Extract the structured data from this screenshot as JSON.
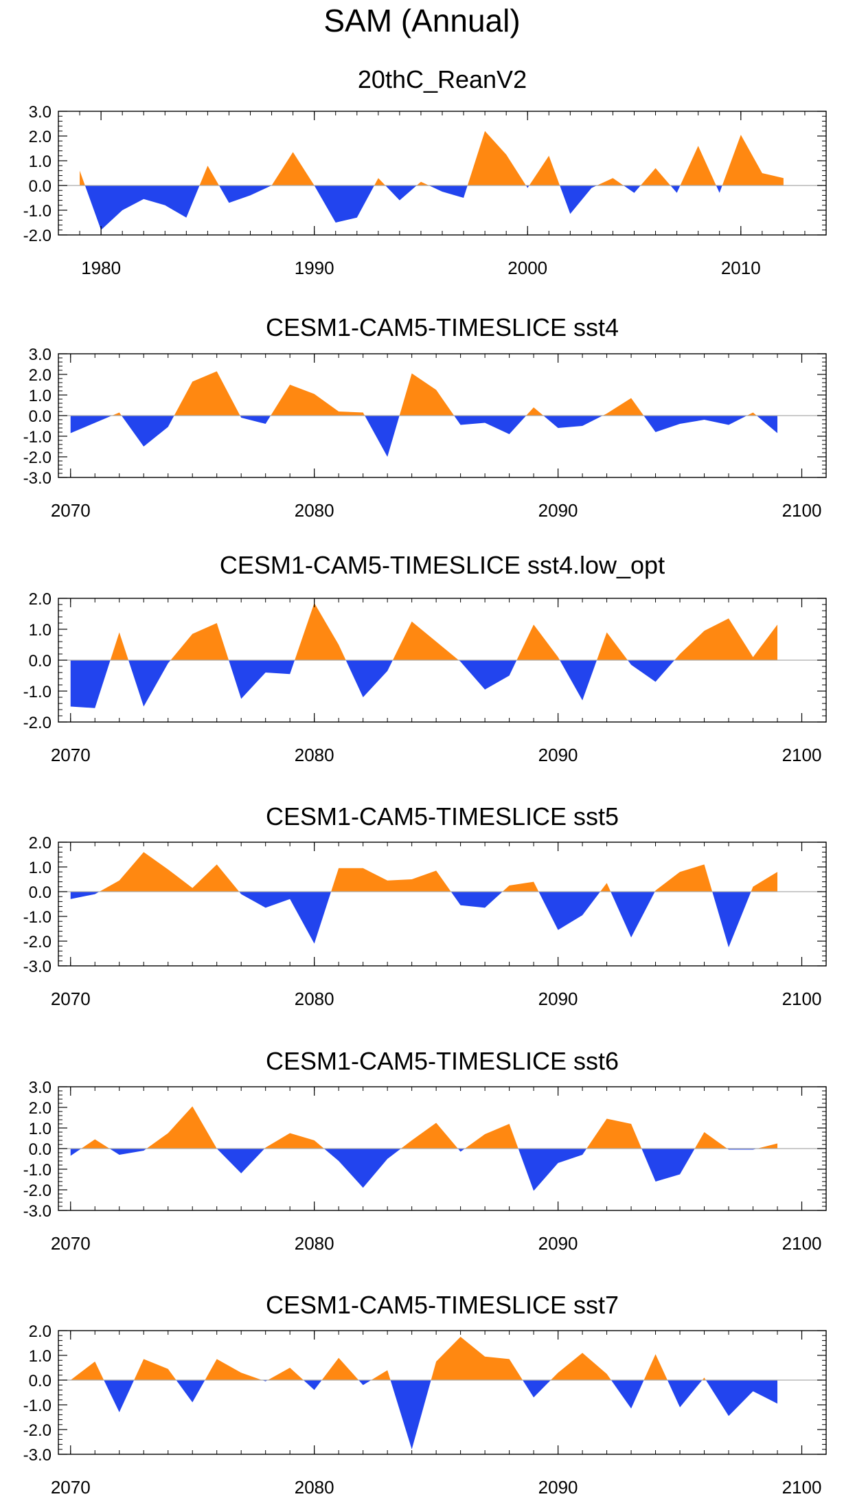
{
  "title": "SAM (Annual)",
  "colors": {
    "positive": "#ff8811",
    "negative": "#2244ee",
    "zero_line": "#aaaaaa",
    "frame": "#000000"
  },
  "chart_data": [
    {
      "type": "area",
      "title": "20thC_ReanV2",
      "x": [
        1979,
        1980,
        1981,
        1982,
        1983,
        1984,
        1985,
        1986,
        1987,
        1988,
        1989,
        1990,
        1991,
        1992,
        1993,
        1994,
        1995,
        1996,
        1997,
        1998,
        1999,
        2000,
        2001,
        2002,
        2003,
        2004,
        2005,
        2006,
        2007,
        2008,
        2009,
        2010,
        2011,
        2012
      ],
      "values": [
        0.6,
        -1.8,
        -1.0,
        -0.55,
        -0.8,
        -1.3,
        0.8,
        -0.7,
        -0.4,
        0.0,
        1.35,
        0.0,
        -1.5,
        -1.3,
        0.3,
        -0.6,
        0.15,
        -0.25,
        -0.5,
        2.2,
        1.25,
        -0.1,
        1.2,
        -1.15,
        -0.1,
        0.3,
        -0.3,
        0.7,
        -0.3,
        1.6,
        -0.3,
        2.05,
        0.5,
        0.3
      ],
      "xlim": [
        1978,
        2014
      ],
      "ylim": [
        -2.0,
        3.0
      ],
      "xticks": [
        "1980",
        "1990",
        "2000",
        "2010"
      ],
      "yticks": [
        "3.0",
        "2.0",
        "1.0",
        "0.0",
        "-1.0",
        "-2.0"
      ]
    },
    {
      "type": "area",
      "title": "CESM1-CAM5-TIMESLICE sst4",
      "x": [
        2070,
        2071,
        2072,
        2073,
        2074,
        2075,
        2076,
        2077,
        2078,
        2079,
        2080,
        2081,
        2082,
        2083,
        2084,
        2085,
        2086,
        2087,
        2088,
        2089,
        2090,
        2091,
        2092,
        2093,
        2094,
        2095,
        2096,
        2097,
        2098,
        2099
      ],
      "values": [
        -0.85,
        -0.35,
        0.15,
        -1.5,
        -0.55,
        1.65,
        2.15,
        -0.1,
        -0.4,
        1.5,
        1.05,
        0.2,
        0.15,
        -2.0,
        2.05,
        1.25,
        -0.45,
        -0.35,
        -0.9,
        0.4,
        -0.6,
        -0.5,
        0.1,
        0.85,
        -0.8,
        -0.4,
        -0.2,
        -0.45,
        0.15,
        -0.85
      ],
      "xlim": [
        2069.5,
        2101
      ],
      "ylim": [
        -3.0,
        3.0
      ],
      "xticks": [
        "2070",
        "2080",
        "2090",
        "2100"
      ],
      "yticks": [
        "3.0",
        "2.0",
        "1.0",
        "0.0",
        "-1.0",
        "-2.0",
        "-3.0"
      ]
    },
    {
      "type": "area",
      "title": "CESM1-CAM5-TIMESLICE sst4.low_opt",
      "x": [
        2070,
        2071,
        2072,
        2073,
        2074,
        2075,
        2076,
        2077,
        2078,
        2079,
        2080,
        2081,
        2082,
        2083,
        2084,
        2085,
        2086,
        2087,
        2088,
        2089,
        2090,
        2091,
        2092,
        2093,
        2094,
        2095,
        2096,
        2097,
        2098,
        2099
      ],
      "values": [
        -1.5,
        -1.55,
        0.9,
        -1.5,
        -0.1,
        0.85,
        1.2,
        -1.25,
        -0.4,
        -0.45,
        1.85,
        0.5,
        -1.2,
        -0.35,
        1.25,
        0.6,
        -0.05,
        -0.95,
        -0.5,
        1.15,
        0.1,
        -1.3,
        0.9,
        -0.15,
        -0.7,
        0.2,
        0.95,
        1.35,
        0.1,
        1.15
      ],
      "xlim": [
        2069.5,
        2101
      ],
      "ylim": [
        -2.0,
        2.0
      ],
      "xticks": [
        "2070",
        "2080",
        "2090",
        "2100"
      ],
      "yticks": [
        "2.0",
        "1.0",
        "0.0",
        "-1.0",
        "-2.0"
      ]
    },
    {
      "type": "area",
      "title": "CESM1-CAM5-TIMESLICE sst5",
      "x": [
        2070,
        2071,
        2072,
        2073,
        2074,
        2075,
        2076,
        2077,
        2078,
        2079,
        2080,
        2081,
        2082,
        2083,
        2084,
        2085,
        2086,
        2087,
        2088,
        2089,
        2090,
        2091,
        2092,
        2093,
        2094,
        2095,
        2096,
        2097,
        2098,
        2099
      ],
      "values": [
        -0.3,
        -0.1,
        0.45,
        1.6,
        0.9,
        0.15,
        1.1,
        -0.1,
        -0.65,
        -0.3,
        -2.1,
        0.95,
        0.95,
        0.45,
        0.5,
        0.85,
        -0.55,
        -0.65,
        0.25,
        0.4,
        -1.55,
        -0.95,
        0.35,
        -1.85,
        0.05,
        0.8,
        1.1,
        -2.25,
        0.2,
        0.8
      ],
      "xlim": [
        2069.5,
        2101
      ],
      "ylim": [
        -3.0,
        2.0
      ],
      "xticks": [
        "2070",
        "2080",
        "2090",
        "2100"
      ],
      "yticks": [
        "2.0",
        "1.0",
        "0.0",
        "-1.0",
        "-2.0",
        "-3.0"
      ]
    },
    {
      "type": "area",
      "title": "CESM1-CAM5-TIMESLICE sst6",
      "x": [
        2070,
        2071,
        2072,
        2073,
        2074,
        2075,
        2076,
        2077,
        2078,
        2079,
        2080,
        2081,
        2082,
        2083,
        2084,
        2085,
        2086,
        2087,
        2088,
        2089,
        2090,
        2091,
        2092,
        2093,
        2094,
        2095,
        2096,
        2097,
        2098,
        2099
      ],
      "values": [
        -0.35,
        0.45,
        -0.3,
        -0.1,
        0.75,
        2.05,
        0.0,
        -1.2,
        0.05,
        0.75,
        0.4,
        -0.6,
        -1.9,
        -0.5,
        0.4,
        1.25,
        -0.15,
        0.7,
        1.2,
        -2.05,
        -0.7,
        -0.3,
        1.45,
        1.2,
        -1.6,
        -1.25,
        0.8,
        -0.05,
        -0.05,
        0.25
      ],
      "xlim": [
        2069.5,
        2101
      ],
      "ylim": [
        -3.0,
        3.0
      ],
      "xticks": [
        "2070",
        "2080",
        "2090",
        "2100"
      ],
      "yticks": [
        "3.0",
        "2.0",
        "1.0",
        "0.0",
        "-1.0",
        "-2.0",
        "-3.0"
      ]
    },
    {
      "type": "area",
      "title": "CESM1-CAM5-TIMESLICE sst7",
      "x": [
        2070,
        2071,
        2072,
        2073,
        2074,
        2075,
        2076,
        2077,
        2078,
        2079,
        2080,
        2081,
        2082,
        2083,
        2084,
        2085,
        2086,
        2087,
        2088,
        2089,
        2090,
        2091,
        2092,
        2093,
        2094,
        2095,
        2096,
        2097,
        2098,
        2099
      ],
      "values": [
        0.0,
        0.75,
        -1.3,
        0.85,
        0.45,
        -0.9,
        0.85,
        0.3,
        -0.05,
        0.5,
        -0.4,
        0.9,
        -0.2,
        0.4,
        -2.8,
        0.75,
        1.75,
        0.95,
        0.85,
        -0.7,
        0.3,
        1.1,
        0.25,
        -1.15,
        1.05,
        -1.1,
        0.1,
        -1.45,
        -0.45,
        -0.95
      ],
      "xlim": [
        2069.5,
        2101
      ],
      "ylim": [
        -3.0,
        2.0
      ],
      "xticks": [
        "2070",
        "2080",
        "2090",
        "2100"
      ],
      "yticks": [
        "2.0",
        "1.0",
        "0.0",
        "-1.0",
        "-2.0",
        "-3.0"
      ]
    }
  ]
}
